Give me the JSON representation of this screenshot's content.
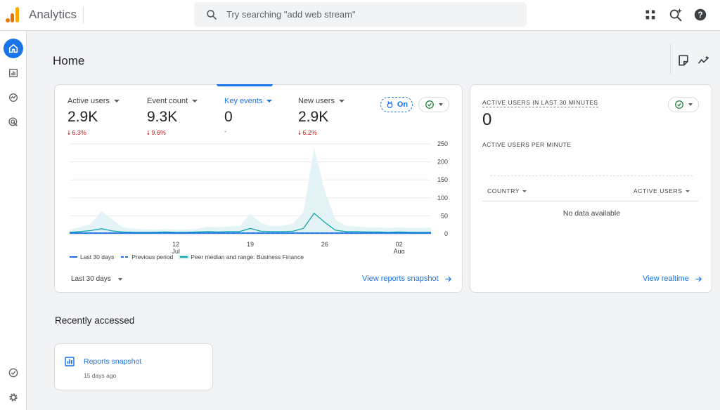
{
  "app": {
    "name": "Analytics"
  },
  "search": {
    "placeholder": "Try searching \"add web stream\""
  },
  "topbar_icons": [
    "apps-grid-icon",
    "search-insights-icon",
    "help-icon"
  ],
  "nav": [
    {
      "name": "home",
      "icon": "home-icon",
      "active": true
    },
    {
      "name": "reports",
      "icon": "bar-chart-icon",
      "active": false
    },
    {
      "name": "explore",
      "icon": "explore-icon",
      "active": false
    },
    {
      "name": "advertising",
      "icon": "target-icon",
      "active": false
    },
    {
      "name": "admin-checks",
      "icon": "check-circle-icon",
      "active": false
    },
    {
      "name": "settings",
      "icon": "gear-icon",
      "active": false
    }
  ],
  "page": {
    "title": "Home"
  },
  "metrics": [
    {
      "label": "Active users",
      "value": "2.9K",
      "change": "6.3%",
      "direction": "down",
      "selected": false
    },
    {
      "label": "Event count",
      "value": "9.3K",
      "change": "9.6%",
      "direction": "down",
      "selected": false
    },
    {
      "label": "Key events",
      "value": "0",
      "change": "-",
      "direction": "none",
      "selected": true
    },
    {
      "label": "New users",
      "value": "2.9K",
      "change": "6.2%",
      "direction": "down",
      "selected": false
    }
  ],
  "on_chip": {
    "label": "On"
  },
  "colors": {
    "accent": "#1a73e8",
    "negative": "#c5221f",
    "peer_line": "#12a4af",
    "peer_band": "#e4f4f6",
    "positive": "#188038"
  },
  "chart_data": {
    "type": "line",
    "ylim": [
      0,
      250
    ],
    "yticks": [
      "250",
      "200",
      "150",
      "100",
      "50",
      "0"
    ],
    "xticks": [
      {
        "day": "12",
        "month": "Jul",
        "index": 10
      },
      {
        "day": "19",
        "month": "",
        "index": 17
      },
      {
        "day": "26",
        "month": "",
        "index": 24
      },
      {
        "day": "02",
        "month": "Aug",
        "index": 31
      }
    ],
    "x_count": 35,
    "series": [
      {
        "name": "Last 30 days",
        "style": "solid",
        "values": [
          2,
          2,
          2,
          2,
          2,
          2,
          2,
          2,
          2,
          2,
          2,
          2,
          2,
          2,
          2,
          2,
          2,
          2,
          2,
          2,
          2,
          2,
          2,
          2,
          2,
          2,
          2,
          2,
          2,
          2,
          2,
          2,
          2,
          2,
          2
        ]
      },
      {
        "name": "Previous period",
        "style": "dashed",
        "values": [
          2,
          2,
          2,
          2,
          2,
          2,
          2,
          2,
          2,
          2,
          2,
          2,
          2,
          2,
          2,
          2,
          2,
          2,
          2,
          2,
          2,
          2,
          2,
          2,
          2,
          2,
          2,
          2,
          2,
          2,
          2,
          2,
          2,
          2,
          2
        ]
      },
      {
        "name": "Peer median and range: Business Finance",
        "style": "band",
        "values": [
          4,
          6,
          9,
          14,
          8,
          5,
          4,
          4,
          4,
          5,
          4,
          4,
          5,
          6,
          5,
          6,
          6,
          15,
          7,
          6,
          6,
          7,
          15,
          57,
          32,
          10,
          6,
          6,
          5,
          5,
          4,
          5,
          4,
          4,
          4
        ],
        "upper": [
          12,
          18,
          28,
          63,
          40,
          18,
          14,
          13,
          12,
          13,
          12,
          12,
          14,
          20,
          18,
          20,
          22,
          55,
          30,
          22,
          22,
          28,
          60,
          240,
          120,
          40,
          22,
          20,
          18,
          18,
          16,
          18,
          16,
          16,
          18
        ],
        "lower": [
          0,
          0,
          0,
          0,
          0,
          0,
          0,
          0,
          0,
          0,
          0,
          0,
          0,
          0,
          0,
          0,
          0,
          0,
          0,
          0,
          0,
          0,
          0,
          0,
          0,
          0,
          0,
          0,
          0,
          0,
          0,
          0,
          0,
          0,
          0
        ]
      }
    ]
  },
  "legend": {
    "last30": "Last 30 days",
    "previous": "Previous period",
    "peer": "Peer median and range: Business Finance"
  },
  "main_card": {
    "date_range": "Last 30 days",
    "link": "View reports snapshot"
  },
  "realtime": {
    "title": "ACTIVE USERS IN LAST 30 MINUTES",
    "value": "0",
    "subtitle": "ACTIVE USERS PER MINUTE",
    "col_country": "COUNTRY",
    "col_users": "ACTIVE USERS",
    "empty": "No data available",
    "link": "View realtime"
  },
  "recent": {
    "title": "Recently accessed",
    "items": [
      {
        "name": "Reports snapshot",
        "time": "15 days ago",
        "icon": "report-icon"
      }
    ]
  }
}
